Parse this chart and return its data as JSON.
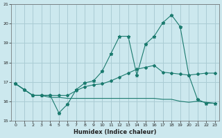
{
  "xlabel": "Humidex (Indice chaleur)",
  "bg_color": "#cce8ee",
  "grid_color": "#aaccd4",
  "line_color": "#1a7a6e",
  "xlim": [
    -0.5,
    23.5
  ],
  "ylim": [
    15,
    21
  ],
  "yticks": [
    15,
    16,
    17,
    18,
    19,
    20,
    21
  ],
  "xticks": [
    0,
    1,
    2,
    3,
    4,
    5,
    6,
    7,
    8,
    9,
    10,
    11,
    12,
    13,
    14,
    15,
    16,
    17,
    18,
    19,
    20,
    21,
    22,
    23
  ],
  "series1_x": [
    0,
    1,
    2,
    3,
    4,
    5,
    6,
    7,
    8,
    9,
    10,
    11,
    12,
    13,
    14,
    15,
    16,
    17,
    18,
    19,
    20,
    21,
    22,
    23
  ],
  "series1_y": [
    16.9,
    16.6,
    16.3,
    16.3,
    16.3,
    15.4,
    15.85,
    16.6,
    16.95,
    17.05,
    17.55,
    18.45,
    19.35,
    19.35,
    17.35,
    18.95,
    19.35,
    20.05,
    20.45,
    19.85,
    17.35,
    16.1,
    15.9,
    15.9
  ],
  "series2_x": [
    0,
    1,
    2,
    3,
    4,
    5,
    6,
    7,
    8,
    9,
    10,
    11,
    12,
    13,
    14,
    15,
    16,
    17,
    18,
    19,
    20,
    21,
    22,
    23
  ],
  "series2_y": [
    16.9,
    16.6,
    16.3,
    16.3,
    16.3,
    16.3,
    16.3,
    16.55,
    16.75,
    16.85,
    16.9,
    17.05,
    17.25,
    17.45,
    17.65,
    17.75,
    17.85,
    17.5,
    17.45,
    17.4,
    17.35,
    17.4,
    17.45,
    17.45
  ],
  "series3_x": [
    0,
    1,
    2,
    3,
    4,
    5,
    6,
    7,
    8,
    9,
    10,
    11,
    12,
    13,
    14,
    15,
    16,
    17,
    18,
    19,
    20,
    21,
    22,
    23
  ],
  "series3_y": [
    16.9,
    16.6,
    16.3,
    16.3,
    16.2,
    16.2,
    16.15,
    16.15,
    16.15,
    16.15,
    16.15,
    16.15,
    16.15,
    16.15,
    16.15,
    16.15,
    16.15,
    16.1,
    16.1,
    16.0,
    15.95,
    16.0,
    15.95,
    15.9
  ]
}
